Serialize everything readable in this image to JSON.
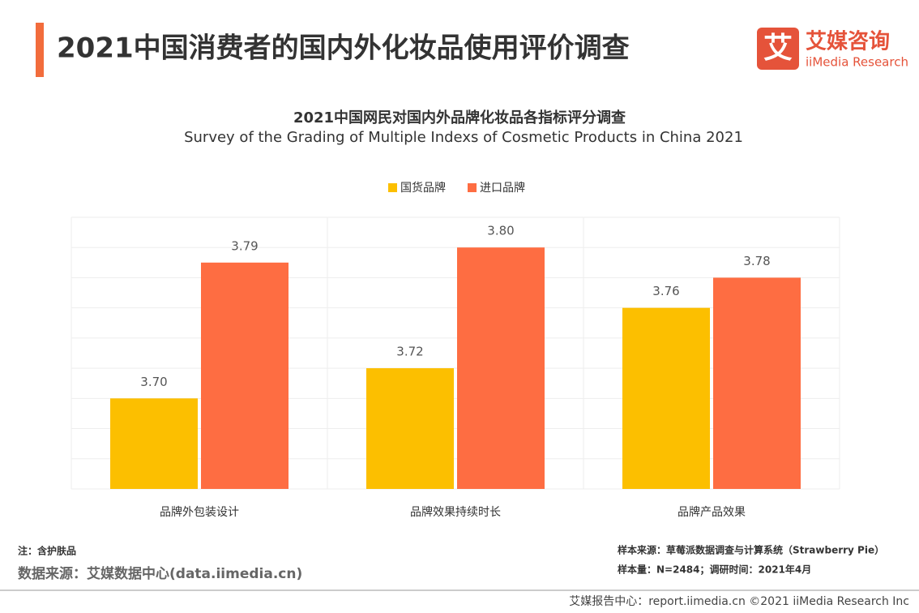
{
  "header": {
    "title": "2021中国消费者的国内外化妆品使用评价调查",
    "logo_mark": "艾",
    "logo_name": "艾媒咨询",
    "logo_sub": "iiMedia Research"
  },
  "chart_data": {
    "type": "bar",
    "title": "2021中国网民对国内外品牌化妆品各指标评分调查",
    "subtitle": "Survey of the Grading of Multiple Indexs of Cosmetic Products in China 2021",
    "categories": [
      "品牌外包装设计",
      "品牌效果持续时长",
      "品牌产品效果"
    ],
    "series": [
      {
        "name": "国货品牌",
        "color": "#fcbf00",
        "values": [
          3.7,
          3.72,
          3.76
        ],
        "value_labels": [
          "3.70",
          "3.72",
          "3.76"
        ]
      },
      {
        "name": "进口品牌",
        "color": "#fe6d42",
        "values": [
          3.79,
          3.8,
          3.78
        ],
        "value_labels": [
          "3.79",
          "3.80",
          "3.78"
        ]
      }
    ],
    "ylim": [
      3.64,
      3.82
    ],
    "yticks": [
      3.64,
      3.66,
      3.68,
      3.7,
      3.72,
      3.74,
      3.76,
      3.78,
      3.8,
      3.82
    ],
    "grid": true,
    "legend": "top"
  },
  "footer": {
    "note": "注：含护肤品",
    "source": "数据来源：艾媒数据中心(data.iimedia.cn)",
    "sample_source": "样本来源：草莓派数据调查与计算系统（Strawberry Pie）",
    "sample_size": "样本量：N=2484；调研时间：2021年4月",
    "copyright": "艾媒报告中心：report.iimedia.cn  ©2021  iiMedia Research  Inc"
  }
}
